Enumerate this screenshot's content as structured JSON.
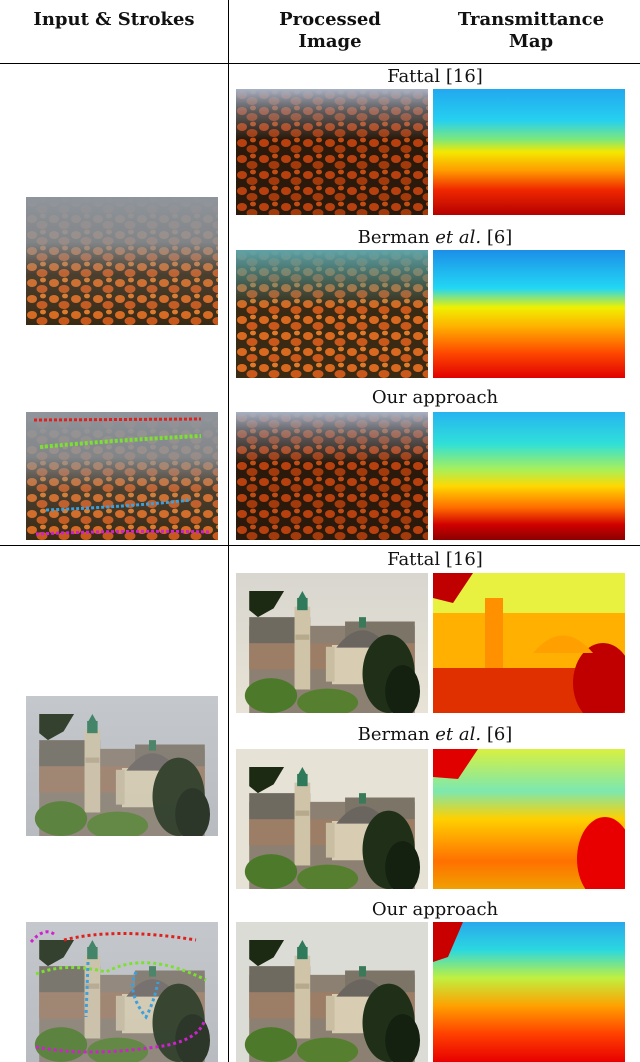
{
  "header": {
    "col1": "Input & Strokes",
    "col2": [
      "Processed",
      "Image"
    ],
    "col3": [
      "Transmittance",
      "Map"
    ]
  },
  "sections": [
    {
      "labels": {
        "fattal": "Fattal [16]",
        "berman_prefix": "Berman ",
        "berman_etal": "et al.",
        "berman_suffix": " [6]",
        "ours": "Our approach"
      }
    },
    {
      "labels": {
        "fattal": "Fattal [16]",
        "berman_prefix": "Berman ",
        "berman_etal": "et al.",
        "berman_suffix": " [6]",
        "ours": "Our approach"
      }
    }
  ],
  "colors": {
    "stroke_red": "#e0201c",
    "stroke_green": "#7be030",
    "stroke_blue": "#3aa0e0",
    "stroke_magenta": "#d020d0"
  }
}
